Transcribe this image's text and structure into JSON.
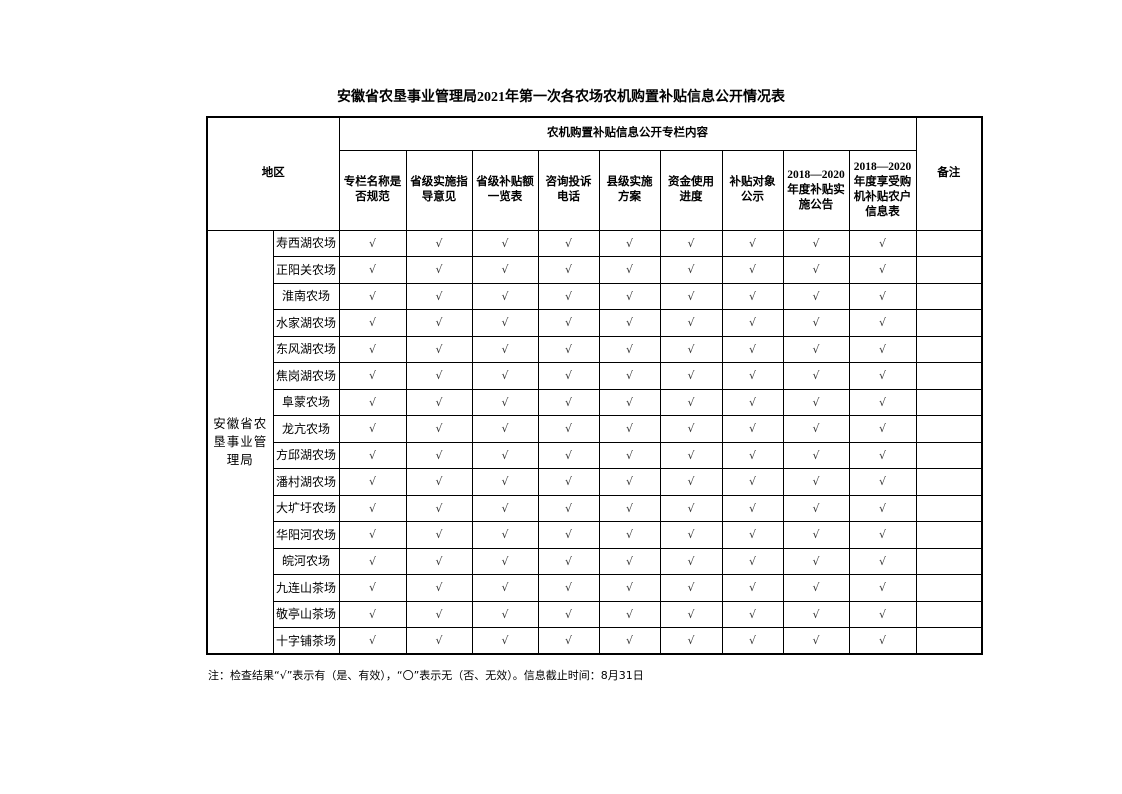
{
  "title": "安徽省农垦事业管理局2021年第一次各农场农机购置补贴信息公开情况表",
  "headers": {
    "region": "地区",
    "group": "农机购置补贴信息公开专栏内容",
    "remarks": "备注",
    "columns": [
      "专栏名称是否规范",
      "省级实施指导意见",
      "省级补贴额一览表",
      "咨询投诉电话",
      "县级实施方案",
      "资金使用进度",
      "补贴对象公示",
      "2018—2020年度补贴实施公告",
      "2018—2020年度享受购机补贴农户信息表"
    ]
  },
  "region_name": "安徽省农垦事业管理局",
  "rows": [
    {
      "farm": "寿西湖农场",
      "checks": [
        "√",
        "√",
        "√",
        "√",
        "√",
        "√",
        "√",
        "√",
        "√"
      ],
      "remark": ""
    },
    {
      "farm": "正阳关农场",
      "checks": [
        "√",
        "√",
        "√",
        "√",
        "√",
        "√",
        "√",
        "√",
        "√"
      ],
      "remark": ""
    },
    {
      "farm": "淮南农场",
      "checks": [
        "√",
        "√",
        "√",
        "√",
        "√",
        "√",
        "√",
        "√",
        "√"
      ],
      "remark": ""
    },
    {
      "farm": "水家湖农场",
      "checks": [
        "√",
        "√",
        "√",
        "√",
        "√",
        "√",
        "√",
        "√",
        "√"
      ],
      "remark": ""
    },
    {
      "farm": "东风湖农场",
      "checks": [
        "√",
        "√",
        "√",
        "√",
        "√",
        "√",
        "√",
        "√",
        "√"
      ],
      "remark": ""
    },
    {
      "farm": "焦岗湖农场",
      "checks": [
        "√",
        "√",
        "√",
        "√",
        "√",
        "√",
        "√",
        "√",
        "√"
      ],
      "remark": ""
    },
    {
      "farm": "阜蒙农场",
      "checks": [
        "√",
        "√",
        "√",
        "√",
        "√",
        "√",
        "√",
        "√",
        "√"
      ],
      "remark": ""
    },
    {
      "farm": "龙亢农场",
      "checks": [
        "√",
        "√",
        "√",
        "√",
        "√",
        "√",
        "√",
        "√",
        "√"
      ],
      "remark": ""
    },
    {
      "farm": "方邱湖农场",
      "checks": [
        "√",
        "√",
        "√",
        "√",
        "√",
        "√",
        "√",
        "√",
        "√"
      ],
      "remark": ""
    },
    {
      "farm": "潘村湖农场",
      "checks": [
        "√",
        "√",
        "√",
        "√",
        "√",
        "√",
        "√",
        "√",
        "√"
      ],
      "remark": ""
    },
    {
      "farm": "大圹圩农场",
      "checks": [
        "√",
        "√",
        "√",
        "√",
        "√",
        "√",
        "√",
        "√",
        "√"
      ],
      "remark": ""
    },
    {
      "farm": "华阳河农场",
      "checks": [
        "√",
        "√",
        "√",
        "√",
        "√",
        "√",
        "√",
        "√",
        "√"
      ],
      "remark": ""
    },
    {
      "farm": "皖河农场",
      "checks": [
        "√",
        "√",
        "√",
        "√",
        "√",
        "√",
        "√",
        "√",
        "√"
      ],
      "remark": ""
    },
    {
      "farm": "九连山茶场",
      "checks": [
        "√",
        "√",
        "√",
        "√",
        "√",
        "√",
        "√",
        "√",
        "√"
      ],
      "remark": ""
    },
    {
      "farm": "敬亭山茶场",
      "checks": [
        "√",
        "√",
        "√",
        "√",
        "√",
        "√",
        "√",
        "√",
        "√"
      ],
      "remark": ""
    },
    {
      "farm": "十字铺茶场",
      "checks": [
        "√",
        "√",
        "√",
        "√",
        "√",
        "√",
        "√",
        "√",
        "√"
      ],
      "remark": ""
    }
  ],
  "note": "注：检查结果“√”表示有（是、有效），“〇”表示无（否、无效）。信息截止时间：8月31日"
}
